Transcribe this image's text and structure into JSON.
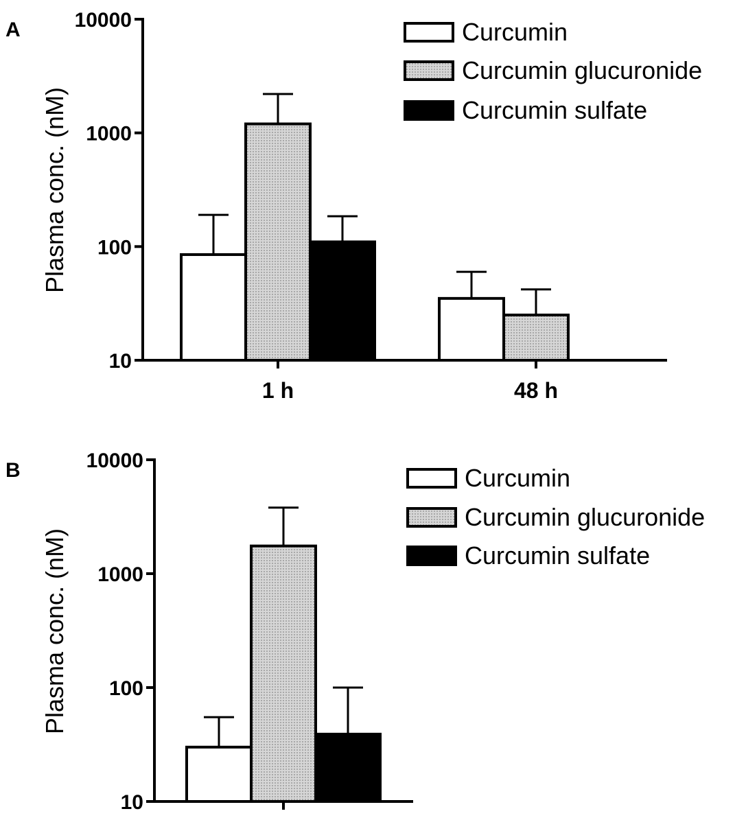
{
  "colors": {
    "curcumin": "#ffffff",
    "glucuronide": "#c8c8c8",
    "sulfate": "#000000"
  },
  "chart_data": [
    {
      "panel": "A",
      "type": "bar",
      "ylabel": "Plasma conc. (nM)",
      "yscale": "log",
      "ylim": [
        10,
        10000
      ],
      "yticks": [
        "10",
        "100",
        "1000",
        "10000"
      ],
      "categories": [
        "1 h",
        "48 h"
      ],
      "legend": {
        "position": "top-right",
        "entries": [
          "Curcumin",
          "Curcumin glucuronide",
          "Curcumin sulfate"
        ]
      },
      "series": [
        {
          "name": "Curcumin",
          "values": [
            85,
            35
          ],
          "error": [
            190,
            60
          ],
          "color_key": "curcumin"
        },
        {
          "name": "Curcumin glucuronide",
          "values": [
            1200,
            25
          ],
          "error": [
            2200,
            42
          ],
          "color_key": "glucuronide"
        },
        {
          "name": "Curcumin sulfate",
          "values": [
            110,
            null
          ],
          "error": [
            185,
            null
          ],
          "color_key": "sulfate"
        }
      ]
    },
    {
      "panel": "B",
      "type": "bar",
      "ylabel": "Plasma conc. (nM)",
      "yscale": "log",
      "ylim": [
        10,
        10000
      ],
      "yticks": [
        "10",
        "100",
        "1000",
        "10000"
      ],
      "categories": [
        ""
      ],
      "legend": {
        "position": "top-right",
        "entries": [
          "Curcumin",
          "Curcumin glucuronide",
          "Curcumin sulfate"
        ]
      },
      "series": [
        {
          "name": "Curcumin",
          "values": [
            30
          ],
          "error": [
            55
          ],
          "color_key": "curcumin"
        },
        {
          "name": "Curcumin glucuronide",
          "values": [
            1750
          ],
          "error": [
            3800
          ],
          "color_key": "glucuronide"
        },
        {
          "name": "Curcumin sulfate",
          "values": [
            39
          ],
          "error": [
            100
          ],
          "color_key": "sulfate"
        }
      ]
    }
  ]
}
